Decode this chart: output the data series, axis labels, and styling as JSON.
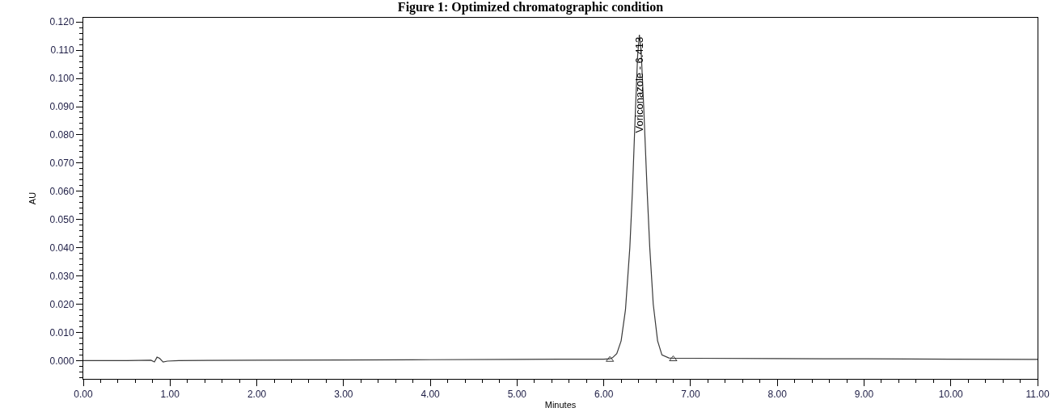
{
  "chart_data": {
    "type": "line",
    "title": "Figure 1: Optimized chromatographic condition",
    "xlabel": "Minutes",
    "ylabel": "AU",
    "series": [
      {
        "color": "#3a3a3a",
        "x": [
          0,
          0.5,
          0.78,
          0.82,
          0.85,
          0.88,
          0.92,
          0.97,
          1.1,
          2,
          3,
          4,
          5,
          5.5,
          6,
          6.07,
          6.1,
          6.15,
          6.2,
          6.25,
          6.3,
          6.33,
          6.36,
          6.39,
          6.41,
          6.43,
          6.46,
          6.5,
          6.53,
          6.57,
          6.62,
          6.67,
          6.75,
          6.8,
          7,
          8,
          9,
          10,
          11
        ],
        "values": [
          0,
          0,
          0.0001,
          -0.0005,
          0.0012,
          0.0008,
          -0.0005,
          -0.0002,
          0,
          0.0001,
          0.0002,
          0.0003,
          0.0004,
          0.0005,
          0.0005,
          0.0006,
          0.001,
          0.0025,
          0.007,
          0.018,
          0.04,
          0.06,
          0.085,
          0.108,
          0.1155,
          0.11,
          0.09,
          0.06,
          0.04,
          0.02,
          0.007,
          0.002,
          0.0009,
          0.0008,
          0.0008,
          0.0007,
          0.0006,
          0.0005,
          0.0004
        ]
      },
      {
        "type": "scatter",
        "color": "#3a3a3a",
        "marker": "triangle",
        "x": [
          6.07,
          6.8
        ],
        "values": [
          0.0003,
          0.0005
        ]
      }
    ],
    "xlim": [
      0,
      11
    ],
    "xticks": [
      {
        "value": 0,
        "label": "0.00"
      },
      {
        "value": 1,
        "label": "1.00"
      },
      {
        "value": 2,
        "label": "2.00"
      },
      {
        "value": 3,
        "label": "3.00"
      },
      {
        "value": 4,
        "label": "4.00"
      },
      {
        "value": 5,
        "label": "5.00"
      },
      {
        "value": 6,
        "label": "6.00"
      },
      {
        "value": 7,
        "label": "7.00"
      },
      {
        "value": 8,
        "label": "8.00"
      },
      {
        "value": 9,
        "label": "9.00"
      },
      {
        "value": 10,
        "label": "10.00"
      },
      {
        "value": 11,
        "label": "11.00"
      }
    ],
    "ylim": [
      -0.0065,
      0.1215
    ],
    "yticks": [
      {
        "value": 0,
        "label": "0.000"
      },
      {
        "value": 0.01,
        "label": "0.010"
      },
      {
        "value": 0.02,
        "label": "0.020"
      },
      {
        "value": 0.03,
        "label": "0.030"
      },
      {
        "value": 0.04,
        "label": "0.040"
      },
      {
        "value": 0.05,
        "label": "0.050"
      },
      {
        "value": 0.06,
        "label": "0.060"
      },
      {
        "value": 0.07,
        "label": "0.070"
      },
      {
        "value": 0.08,
        "label": "0.080"
      },
      {
        "value": 0.09,
        "label": "0.090"
      },
      {
        "value": 0.1,
        "label": "0.100"
      },
      {
        "value": 0.11,
        "label": "0.110"
      },
      {
        "value": 0.12,
        "label": "0.120"
      }
    ],
    "annotations": [
      {
        "text": "Voriconazole - 6.413",
        "x": 6.413,
        "y": 0.1155
      }
    ],
    "grid": false
  }
}
